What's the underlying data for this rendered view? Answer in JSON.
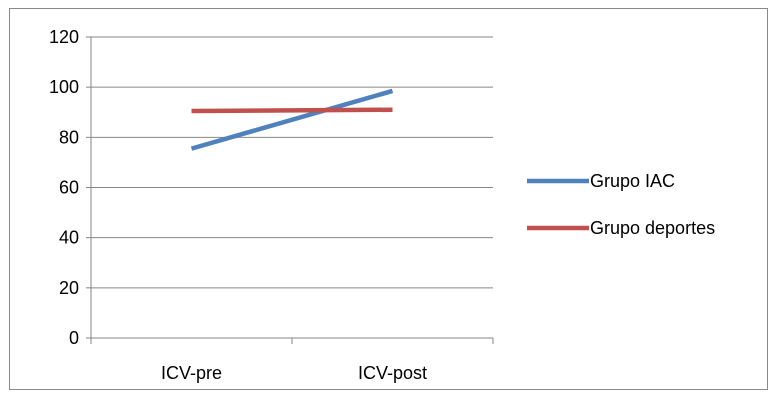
{
  "chart_data": {
    "type": "line",
    "categories": [
      "ICV-pre",
      "ICV-post"
    ],
    "ylim": [
      0,
      120
    ],
    "yticks": [
      0,
      20,
      40,
      60,
      80,
      100,
      120
    ],
    "grid": true,
    "legend_position": "right",
    "series": [
      {
        "name": "Grupo IAC",
        "values": [
          75.5,
          98.5
        ],
        "color": "#4F81BD"
      },
      {
        "name": "Grupo deportes",
        "values": [
          90.5,
          91
        ],
        "color": "#C0504D"
      }
    ]
  }
}
